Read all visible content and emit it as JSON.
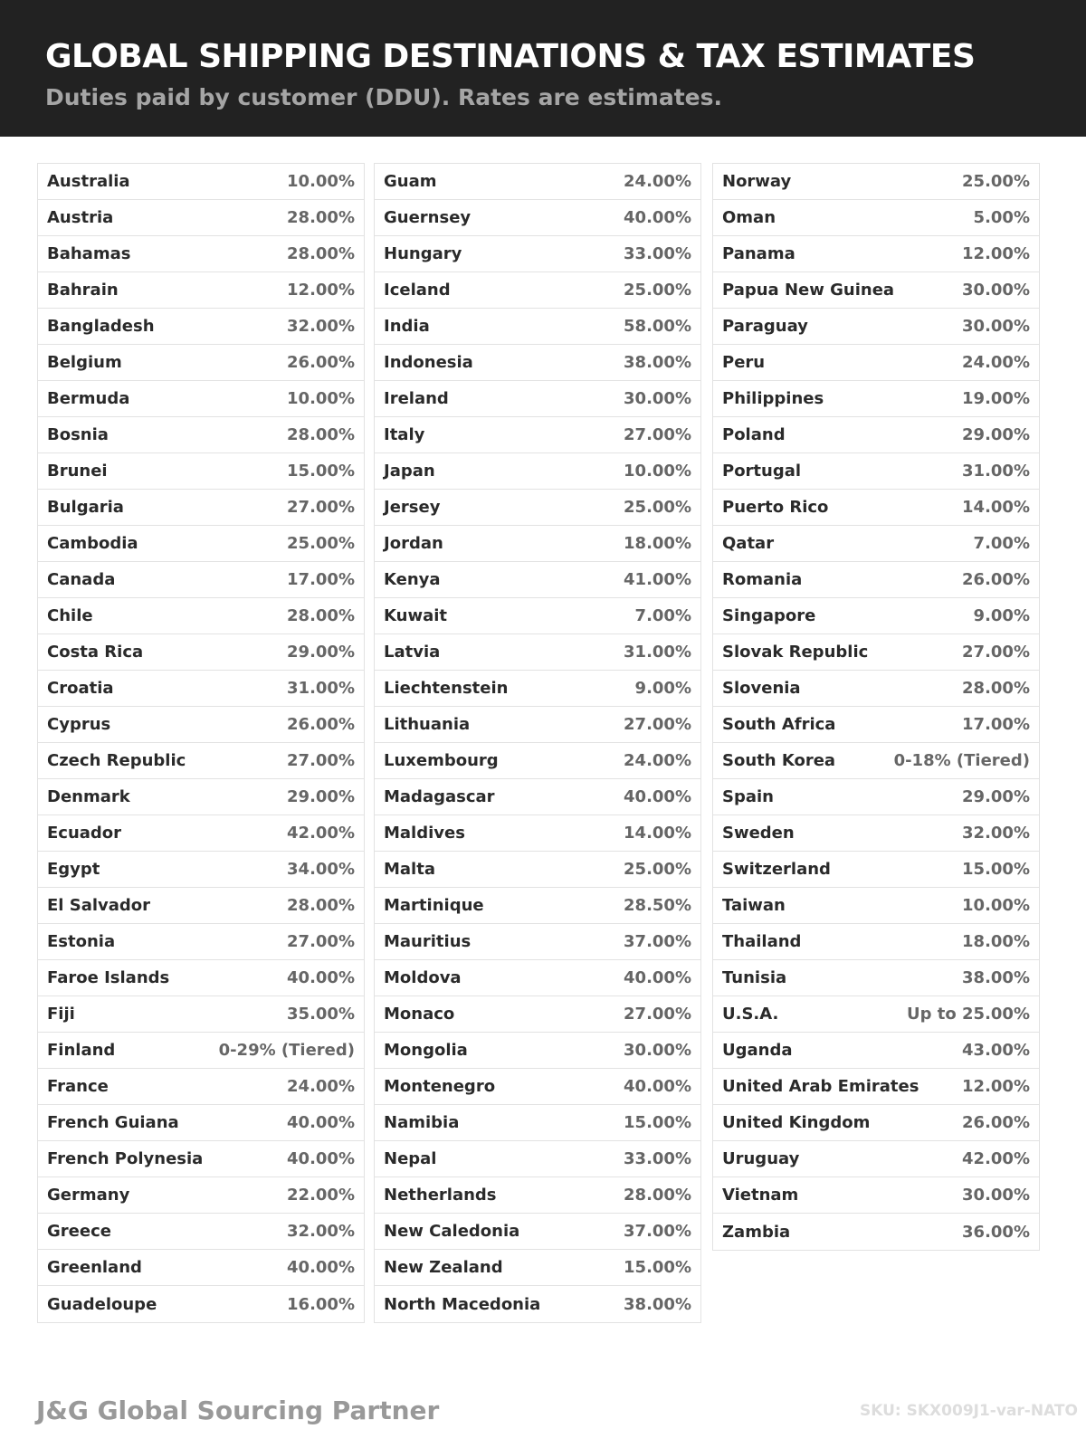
{
  "header": {
    "title": "GLOBAL SHIPPING DESTINATIONS & TAX ESTIMATES",
    "subtitle": "Duties paid by customer (DDU). Rates are estimates."
  },
  "table": {
    "columns": [
      [
        [
          "Australia",
          "10.00%"
        ],
        [
          "Austria",
          "28.00%"
        ],
        [
          "Bahamas",
          "28.00%"
        ],
        [
          "Bahrain",
          "12.00%"
        ],
        [
          "Bangladesh",
          "32.00%"
        ],
        [
          "Belgium",
          "26.00%"
        ],
        [
          "Bermuda",
          "10.00%"
        ],
        [
          "Bosnia",
          "28.00%"
        ],
        [
          "Brunei",
          "15.00%"
        ],
        [
          "Bulgaria",
          "27.00%"
        ],
        [
          "Cambodia",
          "25.00%"
        ],
        [
          "Canada",
          "17.00%"
        ],
        [
          "Chile",
          "28.00%"
        ],
        [
          "Costa Rica",
          "29.00%"
        ],
        [
          "Croatia",
          "31.00%"
        ],
        [
          "Cyprus",
          "26.00%"
        ],
        [
          "Czech Republic",
          "27.00%"
        ],
        [
          "Denmark",
          "29.00%"
        ],
        [
          "Ecuador",
          "42.00%"
        ],
        [
          "Egypt",
          "34.00%"
        ],
        [
          "El Salvador",
          "28.00%"
        ],
        [
          "Estonia",
          "27.00%"
        ],
        [
          "Faroe Islands",
          "40.00%"
        ],
        [
          "Fiji",
          "35.00%"
        ],
        [
          "Finland",
          "0-29% (Tiered)"
        ],
        [
          "France",
          "24.00%"
        ],
        [
          "French Guiana",
          "40.00%"
        ],
        [
          "French Polynesia",
          "40.00%"
        ],
        [
          "Germany",
          "22.00%"
        ],
        [
          "Greece",
          "32.00%"
        ],
        [
          "Greenland",
          "40.00%"
        ],
        [
          "Guadeloupe",
          "16.00%"
        ]
      ],
      [
        [
          "Guam",
          "24.00%"
        ],
        [
          "Guernsey",
          "40.00%"
        ],
        [
          "Hungary",
          "33.00%"
        ],
        [
          "Iceland",
          "25.00%"
        ],
        [
          "India",
          "58.00%"
        ],
        [
          "Indonesia",
          "38.00%"
        ],
        [
          "Ireland",
          "30.00%"
        ],
        [
          "Italy",
          "27.00%"
        ],
        [
          "Japan",
          "10.00%"
        ],
        [
          "Jersey",
          "25.00%"
        ],
        [
          "Jordan",
          "18.00%"
        ],
        [
          "Kenya",
          "41.00%"
        ],
        [
          "Kuwait",
          "7.00%"
        ],
        [
          "Latvia",
          "31.00%"
        ],
        [
          "Liechtenstein",
          "9.00%"
        ],
        [
          "Lithuania",
          "27.00%"
        ],
        [
          "Luxembourg",
          "24.00%"
        ],
        [
          "Madagascar",
          "40.00%"
        ],
        [
          "Maldives",
          "14.00%"
        ],
        [
          "Malta",
          "25.00%"
        ],
        [
          "Martinique",
          "28.50%"
        ],
        [
          "Mauritius",
          "37.00%"
        ],
        [
          "Moldova",
          "40.00%"
        ],
        [
          "Monaco",
          "27.00%"
        ],
        [
          "Mongolia",
          "30.00%"
        ],
        [
          "Montenegro",
          "40.00%"
        ],
        [
          "Namibia",
          "15.00%"
        ],
        [
          "Nepal",
          "33.00%"
        ],
        [
          "Netherlands",
          "28.00%"
        ],
        [
          "New Caledonia",
          "37.00%"
        ],
        [
          "New Zealand",
          "15.00%"
        ],
        [
          "North Macedonia",
          "38.00%"
        ]
      ],
      [
        [
          "Norway",
          "25.00%"
        ],
        [
          "Oman",
          "5.00%"
        ],
        [
          "Panama",
          "12.00%"
        ],
        [
          "Papua New Guinea",
          "30.00%"
        ],
        [
          "Paraguay",
          "30.00%"
        ],
        [
          "Peru",
          "24.00%"
        ],
        [
          "Philippines",
          "19.00%"
        ],
        [
          "Poland",
          "29.00%"
        ],
        [
          "Portugal",
          "31.00%"
        ],
        [
          "Puerto Rico",
          "14.00%"
        ],
        [
          "Qatar",
          "7.00%"
        ],
        [
          "Romania",
          "26.00%"
        ],
        [
          "Singapore",
          "9.00%"
        ],
        [
          "Slovak Republic",
          "27.00%"
        ],
        [
          "Slovenia",
          "28.00%"
        ],
        [
          "South Africa",
          "17.00%"
        ],
        [
          "South Korea",
          "0-18% (Tiered)"
        ],
        [
          "Spain",
          "29.00%"
        ],
        [
          "Sweden",
          "32.00%"
        ],
        [
          "Switzerland",
          "15.00%"
        ],
        [
          "Taiwan",
          "10.00%"
        ],
        [
          "Thailand",
          "18.00%"
        ],
        [
          "Tunisia",
          "38.00%"
        ],
        [
          "U.S.A.",
          "Up to 25.00%"
        ],
        [
          "Uganda",
          "43.00%"
        ],
        [
          "United Arab Emirates",
          "12.00%"
        ],
        [
          "United Kingdom",
          "26.00%"
        ],
        [
          "Uruguay",
          "42.00%"
        ],
        [
          "Vietnam",
          "30.00%"
        ],
        [
          "Zambia",
          "36.00%"
        ]
      ]
    ]
  },
  "footer": {
    "brand": "J&G Global Sourcing Partner",
    "sku": "SKU: SKX009J1-var-NATO"
  }
}
